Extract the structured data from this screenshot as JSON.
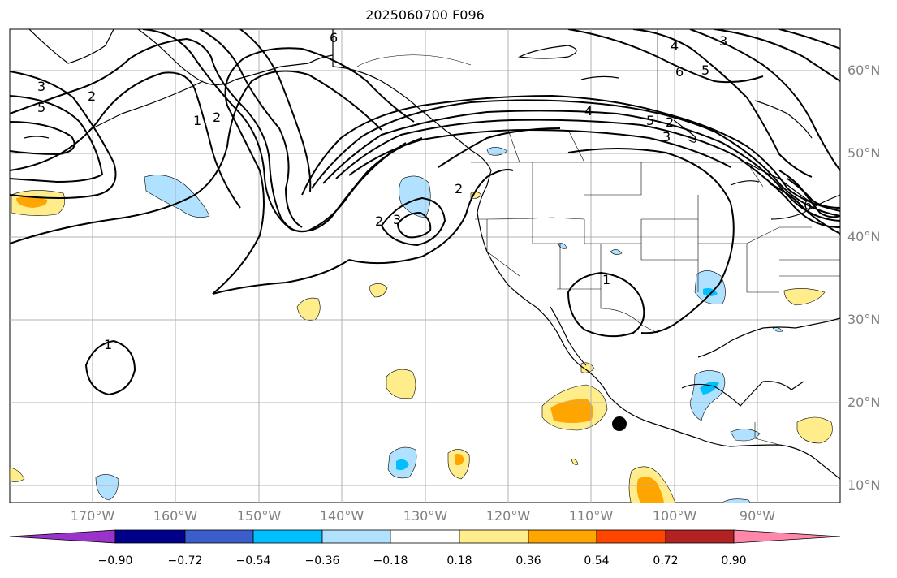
{
  "title": "2025060700 F096",
  "lat_labels": [
    "60°N",
    "50°N",
    "40°N",
    "30°N",
    "20°N",
    "10°N"
  ],
  "lon_labels": [
    "170°W",
    "160°W",
    "150°W",
    "140°W",
    "130°W",
    "120°W",
    "110°W",
    "100°W",
    "90°W"
  ],
  "colorbar": {
    "ticks": [
      "−0.90",
      "−0.72",
      "−0.54",
      "−0.36",
      "−0.18",
      "0.18",
      "0.36",
      "0.54",
      "0.72",
      "0.90"
    ],
    "colors": [
      "#9933cc",
      "#00008b",
      "#3a5fcd",
      "#00bfff",
      "#b0e2ff",
      "#ffffff",
      "#ffec8b",
      "#ffa500",
      "#ff4500",
      "#b22222",
      "#ff88aa"
    ]
  },
  "contour_labels": [
    "6",
    "4",
    "3",
    "6",
    "5",
    "3",
    "2",
    "5",
    "1",
    "2",
    "4",
    "5",
    "2",
    "3",
    "2",
    "3",
    "2",
    "6",
    "1",
    "1"
  ]
}
